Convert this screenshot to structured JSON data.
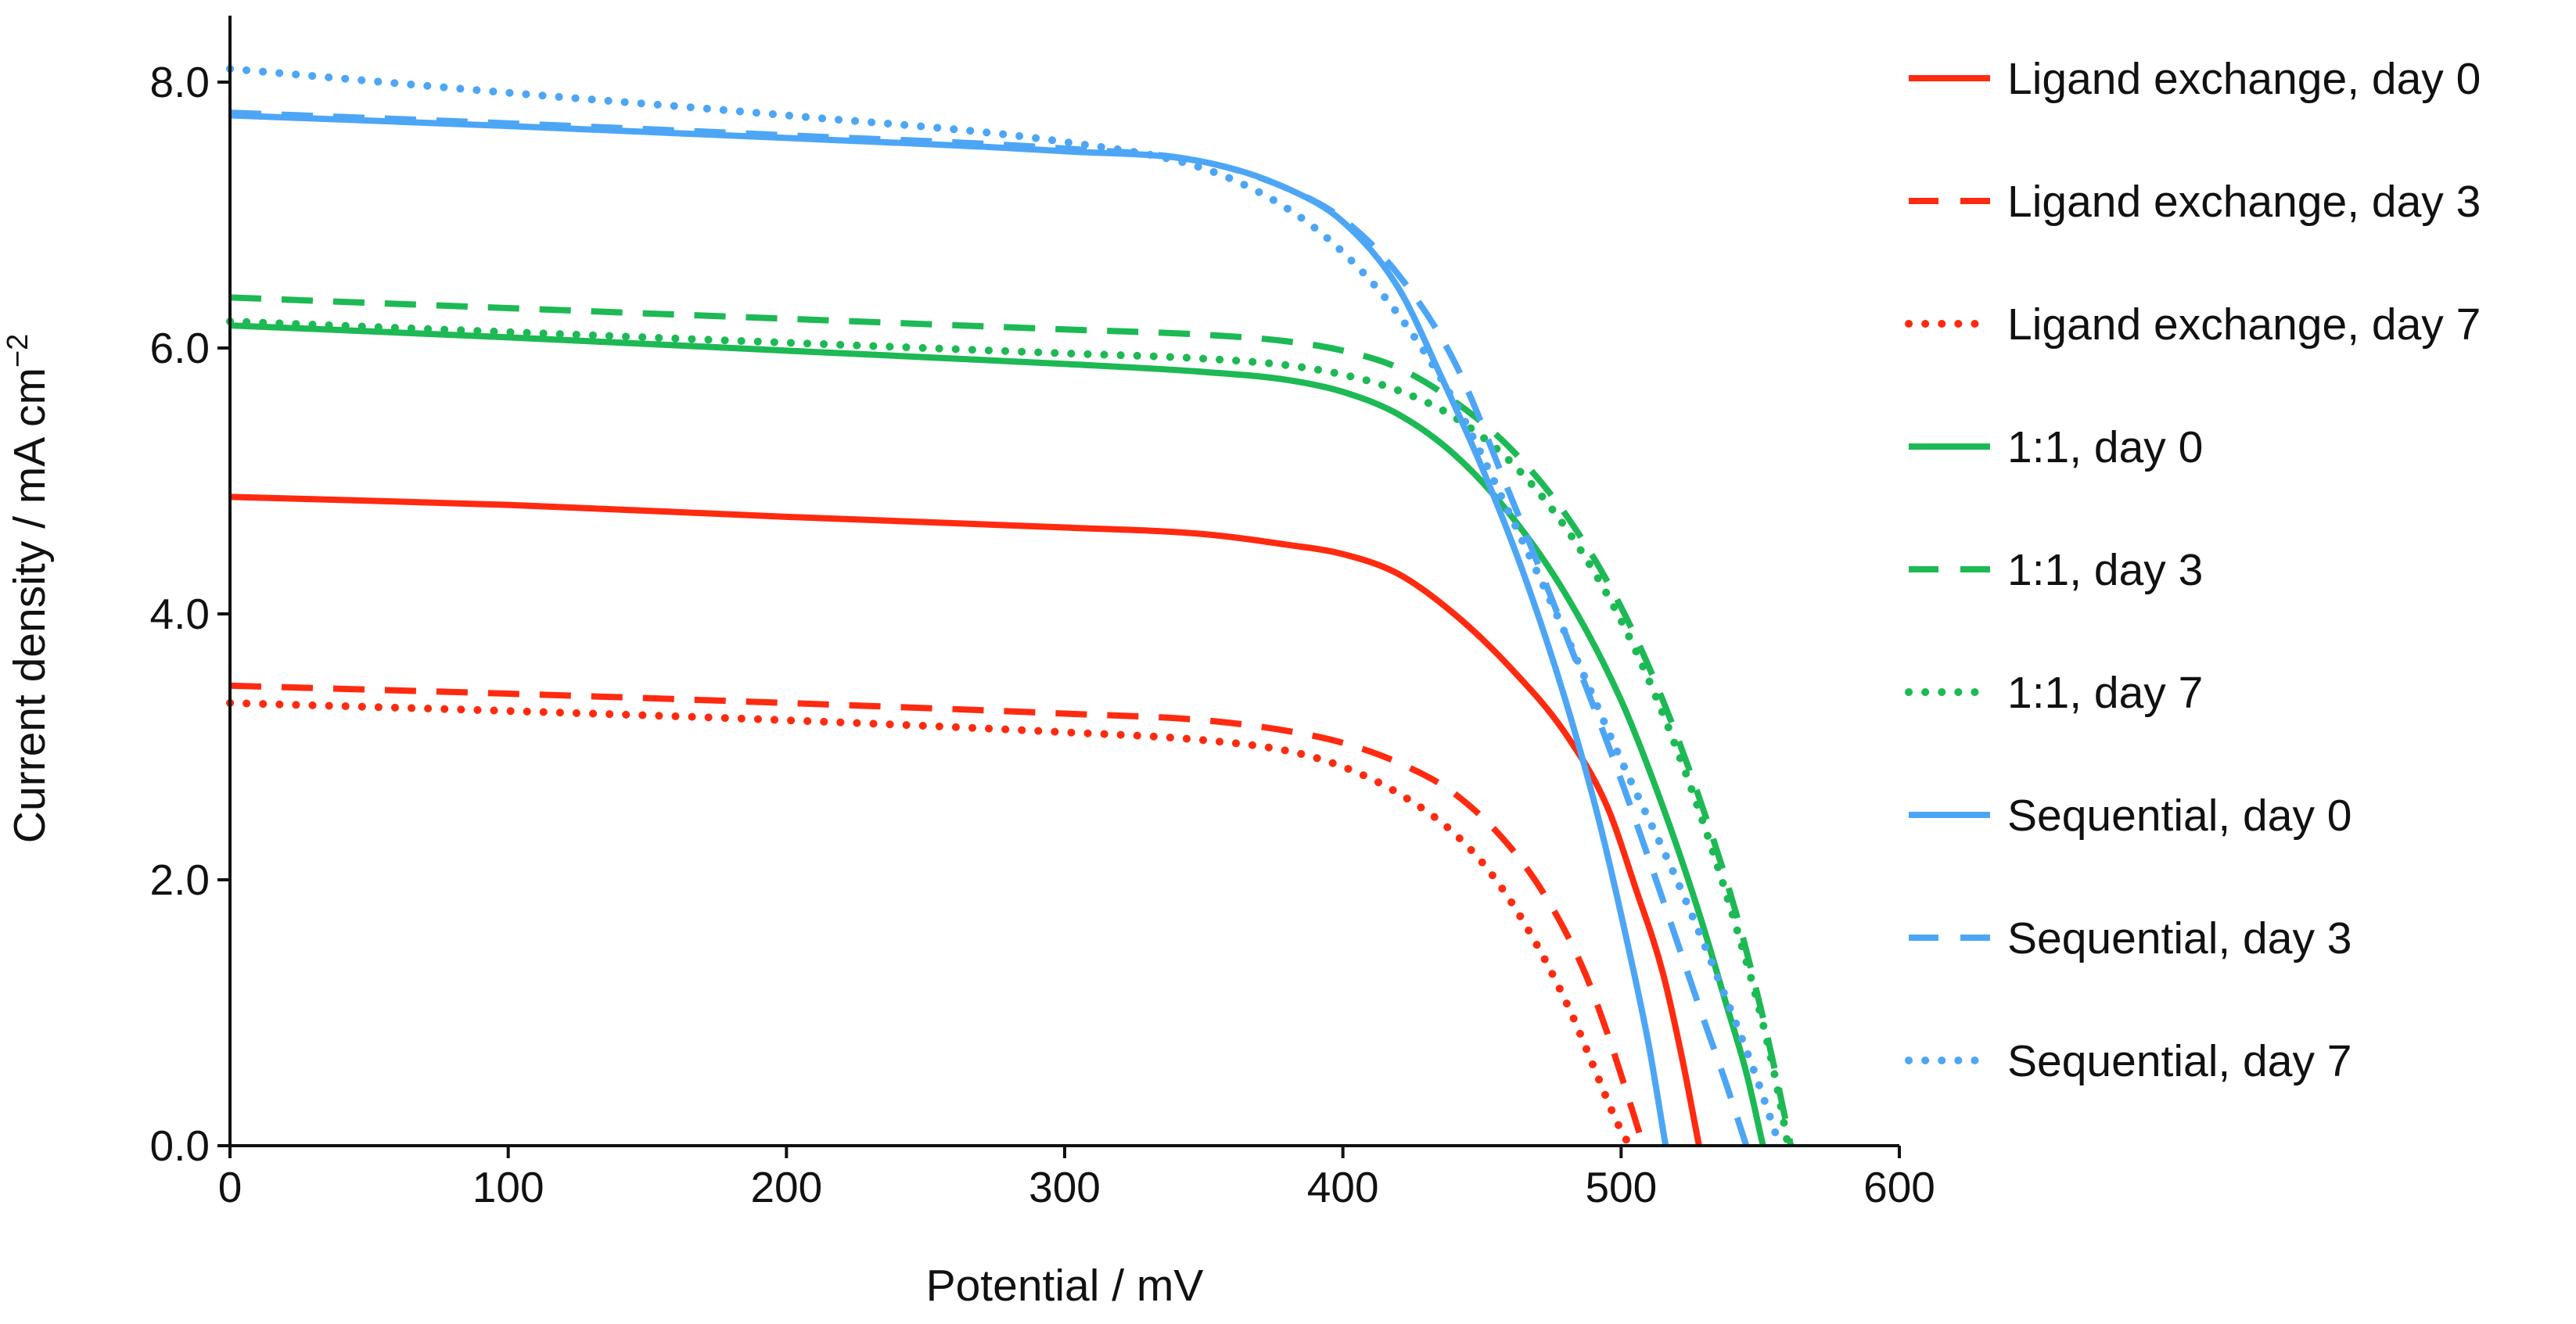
{
  "chart_data": {
    "type": "line",
    "title": "",
    "xlabel": "Potential / mV",
    "ylabel_main": "Current density / mA cm",
    "ylabel_sup": "−2",
    "xlim": [
      0,
      600
    ],
    "ylim": [
      0,
      8.5
    ],
    "xticks": [
      0,
      100,
      200,
      300,
      400,
      500,
      600
    ],
    "xtick_labels": [
      "0",
      "100",
      "200",
      "300",
      "400",
      "500",
      "600"
    ],
    "yticks": [
      0,
      2,
      4,
      6,
      8
    ],
    "ytick_labels": [
      "0.0",
      "2.0",
      "4.0",
      "6.0",
      "8.0"
    ],
    "grid": false,
    "legend_position": "right",
    "series": [
      {
        "name": "Ligand exchange, day 0",
        "color": "#ff2a0f",
        "dash": "solid",
        "points": [
          [
            0,
            4.88
          ],
          [
            100,
            4.82
          ],
          [
            200,
            4.73
          ],
          [
            300,
            4.65
          ],
          [
            350,
            4.6
          ],
          [
            380,
            4.52
          ],
          [
            400,
            4.45
          ],
          [
            420,
            4.3
          ],
          [
            440,
            4.0
          ],
          [
            460,
            3.6
          ],
          [
            480,
            3.1
          ],
          [
            495,
            2.55
          ],
          [
            505,
            1.95
          ],
          [
            515,
            1.3
          ],
          [
            522,
            0.65
          ],
          [
            528,
            0
          ]
        ]
      },
      {
        "name": "Ligand exchange, day 3",
        "color": "#ff2a0f",
        "dash": "dashed",
        "points": [
          [
            0,
            3.46
          ],
          [
            100,
            3.4
          ],
          [
            200,
            3.33
          ],
          [
            300,
            3.25
          ],
          [
            350,
            3.2
          ],
          [
            380,
            3.12
          ],
          [
            400,
            3.03
          ],
          [
            420,
            2.88
          ],
          [
            440,
            2.65
          ],
          [
            460,
            2.25
          ],
          [
            475,
            1.8
          ],
          [
            487,
            1.3
          ],
          [
            495,
            0.85
          ],
          [
            502,
            0.4
          ],
          [
            508,
            0
          ]
        ]
      },
      {
        "name": "Ligand exchange, day 7",
        "color": "#ff2a0f",
        "dash": "dotted",
        "points": [
          [
            0,
            3.33
          ],
          [
            100,
            3.27
          ],
          [
            200,
            3.2
          ],
          [
            300,
            3.11
          ],
          [
            350,
            3.05
          ],
          [
            380,
            2.97
          ],
          [
            400,
            2.85
          ],
          [
            420,
            2.65
          ],
          [
            440,
            2.35
          ],
          [
            455,
            2.0
          ],
          [
            470,
            1.5
          ],
          [
            482,
            1.0
          ],
          [
            491,
            0.55
          ],
          [
            498,
            0.2
          ],
          [
            503,
            0
          ]
        ]
      },
      {
        "name": "1:1, day 0",
        "color": "#1db954",
        "dash": "solid",
        "points": [
          [
            0,
            6.17
          ],
          [
            100,
            6.08
          ],
          [
            200,
            5.98
          ],
          [
            300,
            5.88
          ],
          [
            350,
            5.82
          ],
          [
            380,
            5.76
          ],
          [
            400,
            5.67
          ],
          [
            420,
            5.5
          ],
          [
            440,
            5.2
          ],
          [
            460,
            4.75
          ],
          [
            480,
            4.15
          ],
          [
            500,
            3.35
          ],
          [
            515,
            2.55
          ],
          [
            528,
            1.75
          ],
          [
            538,
            1.05
          ],
          [
            545,
            0.55
          ],
          [
            551,
            0
          ]
        ]
      },
      {
        "name": "1:1, day 3",
        "color": "#1db954",
        "dash": "dashed",
        "points": [
          [
            0,
            6.38
          ],
          [
            100,
            6.3
          ],
          [
            200,
            6.22
          ],
          [
            300,
            6.14
          ],
          [
            350,
            6.1
          ],
          [
            380,
            6.05
          ],
          [
            400,
            5.98
          ],
          [
            420,
            5.85
          ],
          [
            440,
            5.6
          ],
          [
            460,
            5.25
          ],
          [
            480,
            4.75
          ],
          [
            500,
            4.05
          ],
          [
            515,
            3.35
          ],
          [
            530,
            2.5
          ],
          [
            542,
            1.7
          ],
          [
            550,
            1.05
          ],
          [
            556,
            0.5
          ],
          [
            561,
            0
          ]
        ]
      },
      {
        "name": "1:1, day 7",
        "color": "#1db954",
        "dash": "dotted",
        "points": [
          [
            0,
            6.2
          ],
          [
            100,
            6.12
          ],
          [
            200,
            6.04
          ],
          [
            300,
            5.96
          ],
          [
            350,
            5.92
          ],
          [
            380,
            5.87
          ],
          [
            400,
            5.8
          ],
          [
            420,
            5.68
          ],
          [
            440,
            5.48
          ],
          [
            460,
            5.15
          ],
          [
            480,
            4.65
          ],
          [
            500,
            3.95
          ],
          [
            515,
            3.25
          ],
          [
            530,
            2.4
          ],
          [
            542,
            1.6
          ],
          [
            550,
            1.0
          ],
          [
            556,
            0.45
          ],
          [
            560,
            0
          ]
        ]
      },
      {
        "name": "Sequential, day 0",
        "color": "#4da6f5",
        "dash": "solid",
        "points": [
          [
            0,
            7.75
          ],
          [
            100,
            7.67
          ],
          [
            200,
            7.58
          ],
          [
            300,
            7.48
          ],
          [
            350,
            7.4
          ],
          [
            380,
            7.2
          ],
          [
            400,
            6.95
          ],
          [
            420,
            6.45
          ],
          [
            435,
            5.8
          ],
          [
            450,
            5.1
          ],
          [
            465,
            4.3
          ],
          [
            480,
            3.35
          ],
          [
            492,
            2.45
          ],
          [
            502,
            1.55
          ],
          [
            510,
            0.75
          ],
          [
            516,
            0
          ]
        ]
      },
      {
        "name": "Sequential, day 3",
        "color": "#4da6f5",
        "dash": "dashed",
        "points": [
          [
            0,
            7.77
          ],
          [
            100,
            7.69
          ],
          [
            200,
            7.6
          ],
          [
            300,
            7.5
          ],
          [
            350,
            7.4
          ],
          [
            380,
            7.2
          ],
          [
            400,
            6.97
          ],
          [
            420,
            6.55
          ],
          [
            440,
            5.9
          ],
          [
            460,
            4.9
          ],
          [
            480,
            3.85
          ],
          [
            500,
            2.75
          ],
          [
            515,
            1.85
          ],
          [
            528,
            1.05
          ],
          [
            538,
            0.45
          ],
          [
            545,
            0
          ]
        ]
      },
      {
        "name": "Sequential, day 7",
        "color": "#4da6f5",
        "dash": "dotted",
        "points": [
          [
            0,
            8.1
          ],
          [
            100,
            7.92
          ],
          [
            200,
            7.75
          ],
          [
            300,
            7.55
          ],
          [
            350,
            7.35
          ],
          [
            380,
            7.05
          ],
          [
            400,
            6.72
          ],
          [
            420,
            6.25
          ],
          [
            440,
            5.6
          ],
          [
            460,
            4.75
          ],
          [
            480,
            3.85
          ],
          [
            500,
            2.9
          ],
          [
            520,
            2.0
          ],
          [
            535,
            1.25
          ],
          [
            548,
            0.55
          ],
          [
            557,
            0
          ]
        ]
      }
    ]
  }
}
